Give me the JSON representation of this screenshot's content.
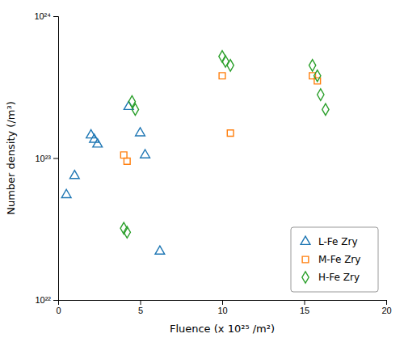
{
  "chart_data": {
    "type": "scatter",
    "xlabel": "Fluence (x 10²⁵ /m²)",
    "ylabel": "Number density (/m³)",
    "xlim": [
      0,
      20
    ],
    "ylim": [
      1e+22,
      1e+24
    ],
    "xticks": [
      0,
      5,
      10,
      15,
      20
    ],
    "yticks": [
      {
        "value": 1e+22,
        "label": "10²²"
      },
      {
        "value": 1e+23,
        "label": "10²³"
      },
      {
        "value": 1e+24,
        "label": "10²⁴"
      }
    ],
    "log": "y",
    "grid": false,
    "legend": "lower right",
    "series": [
      {
        "name": "L-Fe Zry",
        "marker": "triangle",
        "x": [
          0.5,
          1.0,
          2.0,
          2.2,
          2.4,
          4.3,
          5.0,
          5.3,
          6.2
        ],
        "values": [
          5.5e+22,
          7.5e+22,
          1.45e+23,
          1.35e+23,
          1.25e+23,
          2.3e+23,
          1.5e+23,
          1.05e+23,
          2.2e+22
        ]
      },
      {
        "name": "M-Fe Zry",
        "marker": "square",
        "x": [
          4.0,
          4.2,
          10.0,
          10.5,
          15.5,
          15.8
        ],
        "values": [
          1.05e+23,
          9.5e+22,
          3.8e+23,
          1.5e+23,
          3.8e+23,
          3.5e+23
        ]
      },
      {
        "name": "H-Fe Zry",
        "marker": "diamond",
        "x": [
          4.0,
          4.2,
          4.5,
          4.7,
          10.0,
          10.2,
          10.5,
          15.5,
          15.8,
          16.0,
          16.3
        ],
        "values": [
          3.2e+22,
          3e+22,
          2.5e+23,
          2.2e+23,
          5.2e+23,
          4.8e+23,
          4.5e+23,
          4.5e+23,
          3.8e+23,
          2.8e+23,
          2.2e+23
        ]
      }
    ]
  }
}
